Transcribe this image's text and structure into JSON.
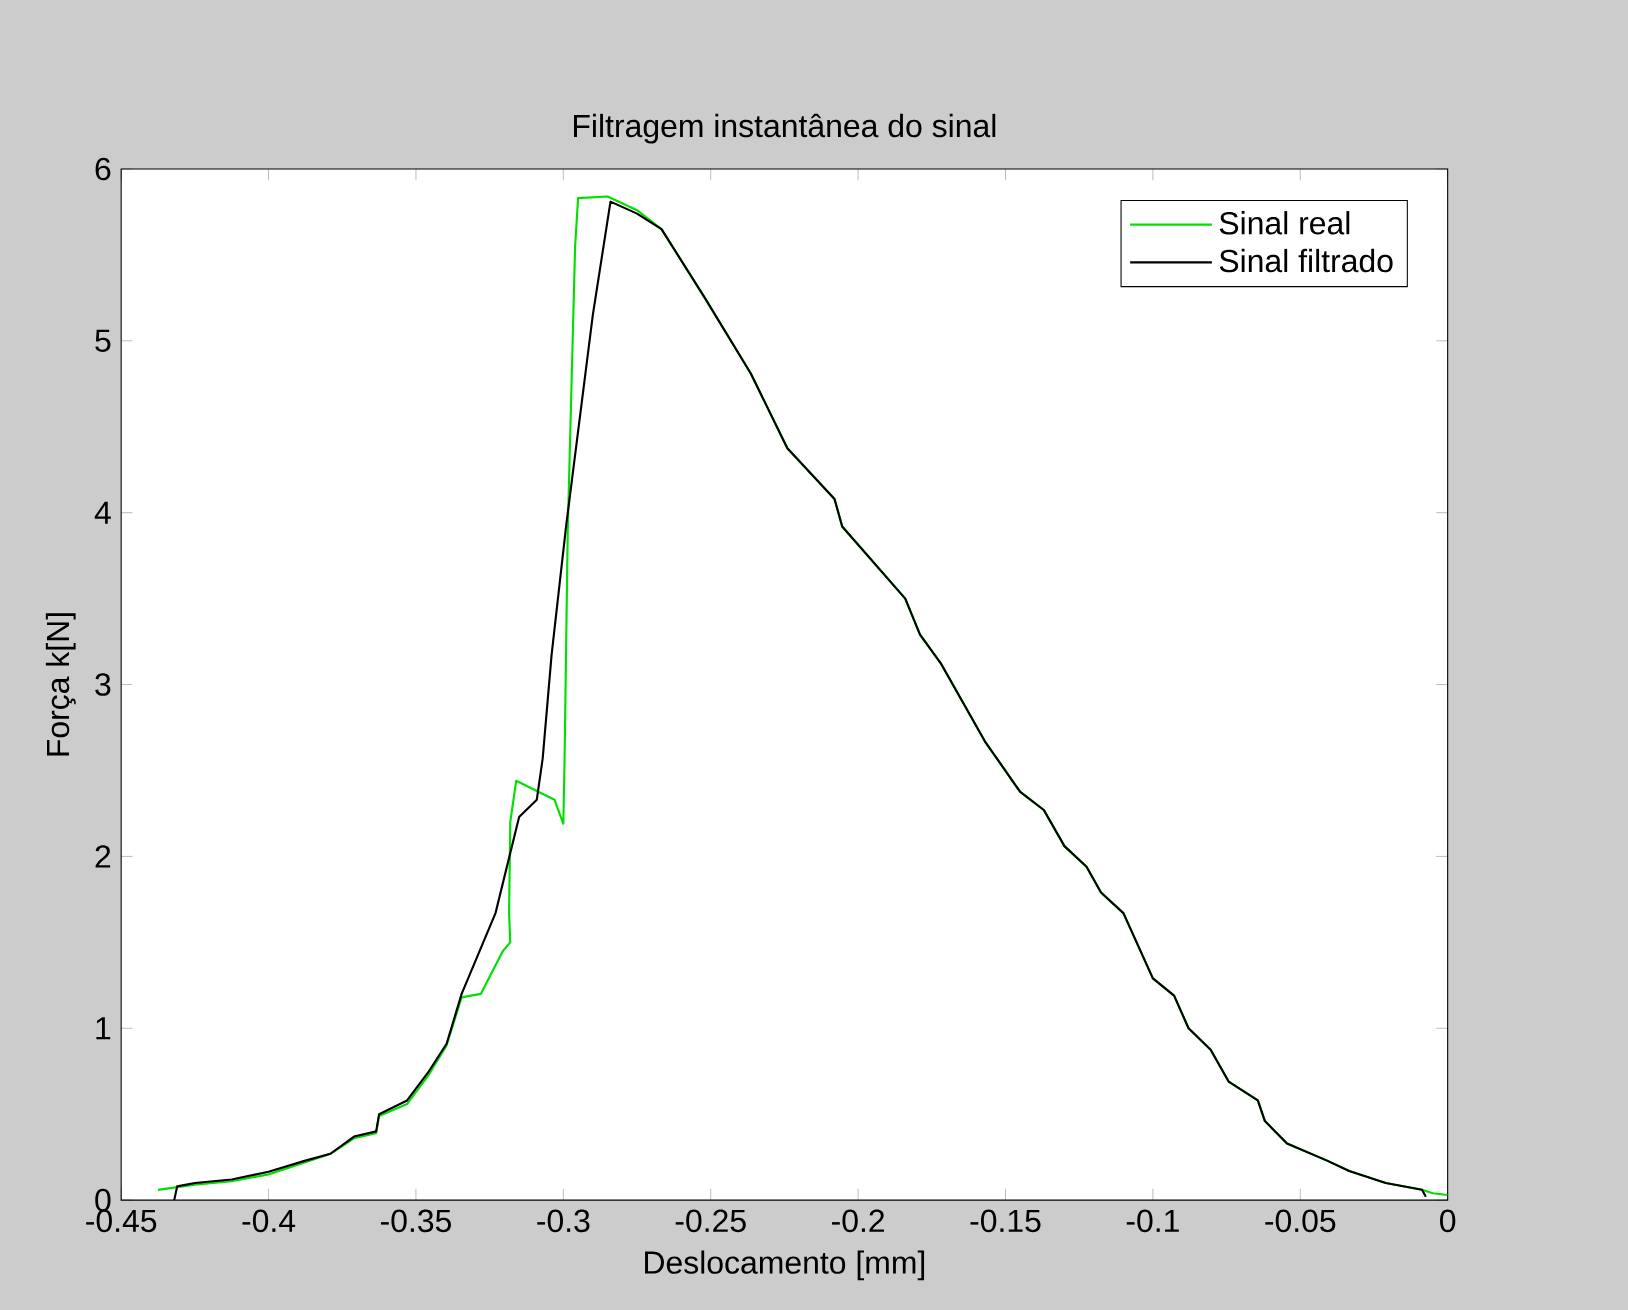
{
  "chart_data": {
    "type": "line",
    "title": "Filtragem instantânea do sinal",
    "xlabel": "Deslocamento [mm]",
    "ylabel": "Força k[N]",
    "xlim": [
      -0.45,
      0
    ],
    "ylim": [
      0,
      6
    ],
    "xticks": [
      -0.45,
      -0.4,
      -0.35,
      -0.3,
      -0.25,
      -0.2,
      -0.15,
      -0.1,
      -0.05,
      0
    ],
    "yticks": [
      0,
      1,
      2,
      3,
      4,
      5,
      6
    ],
    "grid": false,
    "legend": "top right",
    "series": [
      {
        "name": "Sinal real",
        "color": "#00e000",
        "x": [
          -0.4375,
          -0.425,
          -0.4125,
          -0.4,
          -0.3875,
          -0.379,
          -0.371,
          -0.3635,
          -0.3625,
          -0.353,
          -0.346,
          -0.3396,
          -0.3345,
          -0.328,
          -0.3205,
          -0.318,
          -0.3184,
          -0.318,
          -0.316,
          -0.303,
          -0.3,
          -0.2996,
          -0.2985,
          -0.296,
          -0.295,
          -0.285,
          -0.275,
          -0.2667,
          -0.252,
          -0.2364,
          -0.224,
          -0.208,
          -0.2054,
          -0.184,
          -0.179,
          -0.172,
          -0.157,
          -0.145,
          -0.137,
          -0.13,
          -0.1225,
          -0.1176,
          -0.11,
          -0.1,
          -0.0928,
          -0.0879,
          -0.0804,
          -0.0743,
          -0.0644,
          -0.062,
          -0.0545,
          -0.0409,
          -0.0334,
          -0.021,
          -0.0087,
          -0.005,
          0
        ],
        "values": [
          0.06,
          0.09,
          0.11,
          0.15,
          0.22,
          0.27,
          0.36,
          0.39,
          0.49,
          0.56,
          0.72,
          0.9,
          1.18,
          1.2,
          1.45,
          1.5,
          1.67,
          2.2,
          2.44,
          2.33,
          2.19,
          2.54,
          3.9,
          5.55,
          5.83,
          5.84,
          5.76,
          5.65,
          5.25,
          4.81,
          4.375,
          4.08,
          3.92,
          3.5,
          3.29,
          3.125,
          2.67,
          2.375,
          2.27,
          2.06,
          1.94,
          1.79,
          1.67,
          1.29,
          1.19,
          1.0,
          0.875,
          0.69,
          0.58,
          0.46,
          0.33,
          0.23,
          0.17,
          0.1,
          0.06,
          0.04,
          0.03
        ]
      },
      {
        "name": "Sinal filtrado",
        "color": "#000000",
        "x": [
          -0.432,
          -0.431,
          -0.425,
          -0.4125,
          -0.4,
          -0.3875,
          -0.379,
          -0.371,
          -0.3635,
          -0.3625,
          -0.353,
          -0.346,
          -0.3396,
          -0.3345,
          -0.323,
          -0.315,
          -0.309,
          -0.307,
          -0.304,
          -0.299,
          -0.29,
          -0.284,
          -0.275,
          -0.2667,
          -0.252,
          -0.2364,
          -0.224,
          -0.208,
          -0.2054,
          -0.184,
          -0.179,
          -0.172,
          -0.157,
          -0.145,
          -0.137,
          -0.13,
          -0.1225,
          -0.1176,
          -0.11,
          -0.1,
          -0.0928,
          -0.0879,
          -0.0804,
          -0.0743,
          -0.0644,
          -0.062,
          -0.0545,
          -0.0409,
          -0.0334,
          -0.021,
          -0.0087,
          -0.0074
        ],
        "values": [
          0.0,
          0.08,
          0.1,
          0.12,
          0.165,
          0.23,
          0.27,
          0.37,
          0.4,
          0.5,
          0.58,
          0.74,
          0.91,
          1.2,
          1.67,
          2.23,
          2.33,
          2.57,
          3.17,
          3.93,
          5.15,
          5.81,
          5.74,
          5.65,
          5.25,
          4.81,
          4.375,
          4.08,
          3.92,
          3.5,
          3.29,
          3.125,
          2.67,
          2.375,
          2.27,
          2.06,
          1.94,
          1.79,
          1.67,
          1.29,
          1.19,
          1.0,
          0.875,
          0.69,
          0.58,
          0.46,
          0.33,
          0.23,
          0.17,
          0.1,
          0.06,
          0.02
        ]
      }
    ]
  }
}
